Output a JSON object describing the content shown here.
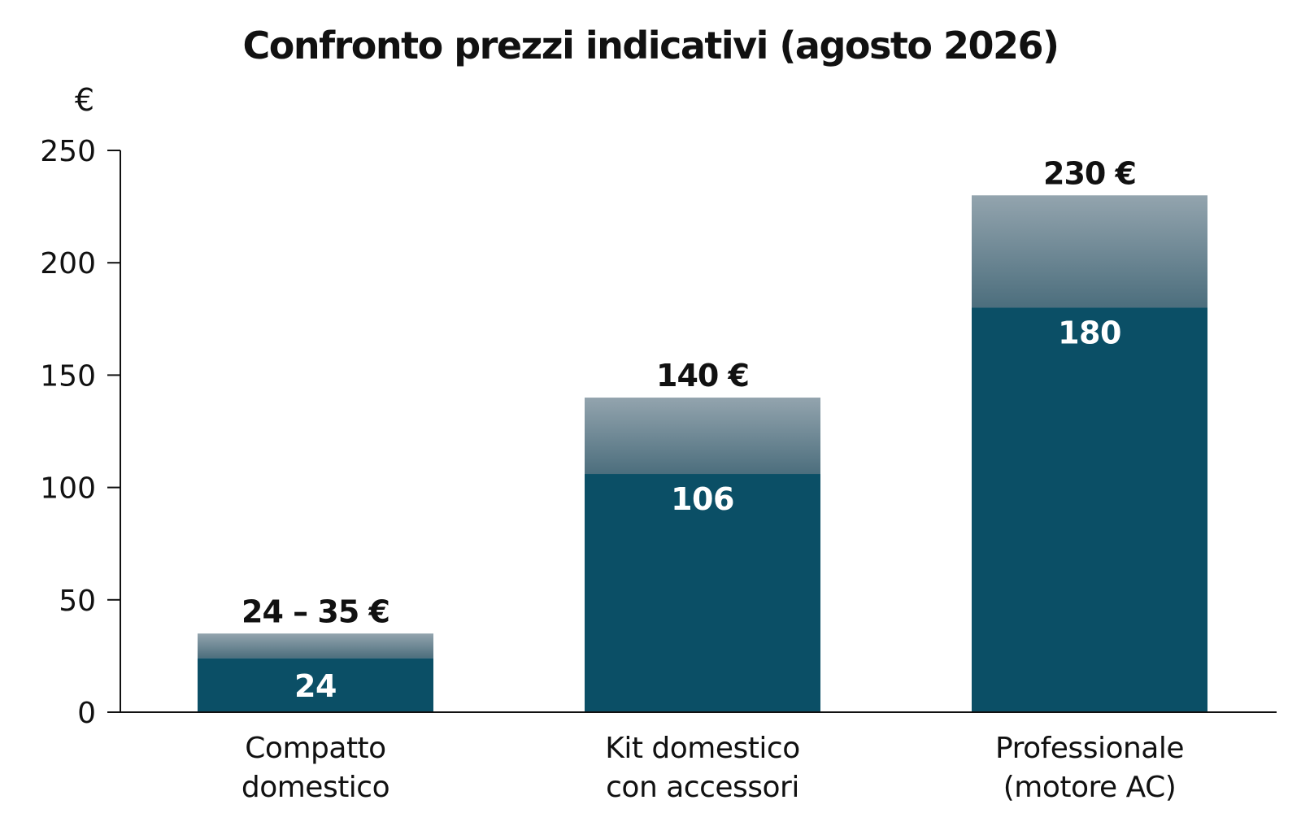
{
  "chart_data": {
    "type": "bar",
    "stacked": true,
    "title": "Confronto prezzi indicativi (agosto 2026)",
    "ylabel": "€",
    "ylim": [
      0,
      250
    ],
    "yticks": [
      "0",
      "50",
      "100",
      "150",
      "200",
      "250"
    ],
    "grid": false,
    "categories": [
      [
        "Compatto",
        "domestico"
      ],
      [
        "Kit domestico",
        "con accessori"
      ],
      [
        "Professionale",
        "(motore AC)"
      ]
    ],
    "series": [
      {
        "values": [
          24,
          106,
          180
        ],
        "labels": [
          "24",
          "106",
          "180"
        ]
      },
      {
        "values": [
          11,
          34,
          50
        ]
      }
    ],
    "totals": [
      35,
      140,
      230
    ],
    "total_labels": [
      "24 – 35 €",
      "140 €",
      "230 €"
    ]
  },
  "colors": {
    "base": "#0b4f66",
    "upper_top": "#93a4ae",
    "upper_bottom": "#4c6e7d",
    "axis": "#111111"
  }
}
